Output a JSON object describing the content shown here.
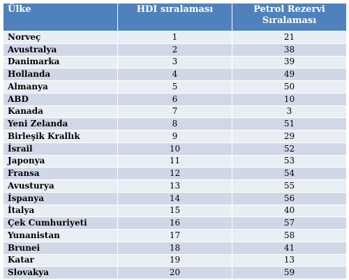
{
  "table": {
    "headers": [
      "Ülke",
      "HDI sıralaması",
      "Petrol Rezervi Sıralaması"
    ],
    "rows": [
      {
        "country": "Norveç",
        "hdi": "1",
        "oil": "21"
      },
      {
        "country": "Avustralya",
        "hdi": "2",
        "oil": "38"
      },
      {
        "country": "Danimarka",
        "hdi": "3",
        "oil": "39"
      },
      {
        "country": "Hollanda",
        "hdi": "4",
        "oil": "49"
      },
      {
        "country": "Almanya",
        "hdi": "5",
        "oil": "50"
      },
      {
        "country": "ABD",
        "hdi": "6",
        "oil": "10"
      },
      {
        "country": "Kanada",
        "hdi": "7",
        "oil": "3"
      },
      {
        "country": "Yeni Zelanda",
        "hdi": "8",
        "oil": "51"
      },
      {
        "country": "Birleşik Krallık",
        "hdi": "9",
        "oil": "29"
      },
      {
        "country": "İsrail",
        "hdi": "10",
        "oil": "52"
      },
      {
        "country": "Japonya",
        "hdi": "11",
        "oil": "53"
      },
      {
        "country": "Fransa",
        "hdi": "12",
        "oil": "54"
      },
      {
        "country": "Avusturya",
        "hdi": "13",
        "oil": "55"
      },
      {
        "country": "İspanya",
        "hdi": "14",
        "oil": "56"
      },
      {
        "country": "İtalya",
        "hdi": "15",
        "oil": "40"
      },
      {
        "country": "Çek Cumhuriyeti",
        "hdi": "16",
        "oil": "57"
      },
      {
        "country": "Yunanistan",
        "hdi": "17",
        "oil": "58"
      },
      {
        "country": "Brunei",
        "hdi": "18",
        "oil": "41"
      },
      {
        "country": "Katar",
        "hdi": "19",
        "oil": "13"
      },
      {
        "country": "Slovakya",
        "hdi": "20",
        "oil": "59"
      }
    ]
  },
  "colors": {
    "header_bg": "#4f81bd",
    "row_odd": "#d0d8e8",
    "row_even": "#e9edf4"
  }
}
